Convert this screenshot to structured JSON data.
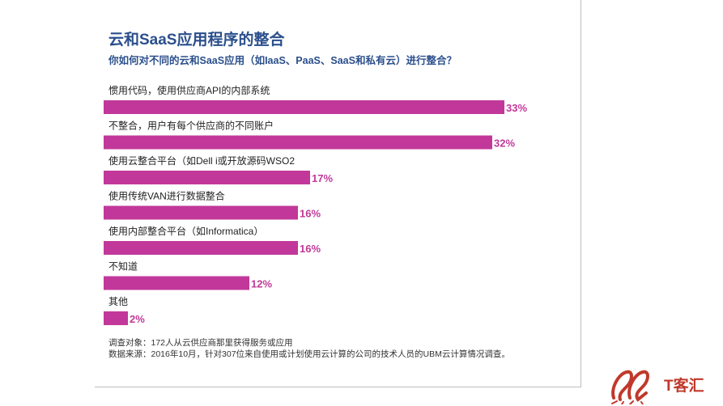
{
  "title": "云和SaaS应用程序的整合",
  "subtitle": "你如何对不同的云和SaaS应用（如IaaS、PaaS、SaaS和私有云）进行整合？",
  "chart_data": {
    "type": "bar",
    "orientation": "horizontal",
    "categories": [
      "惯用代码，使用供应商API的内部系统",
      "不整合，用户有每个供应商的不同账户",
      "使用云整合平台（如Dell i或开放源码WSO2",
      "使用传统VAN进行数据整合",
      "使用内部整合平台（如Informatica）",
      "不知道",
      "其他"
    ],
    "values": [
      33,
      32,
      17,
      16,
      16,
      12,
      2
    ],
    "value_labels": [
      "33%",
      "32%",
      "17%",
      "16%",
      "16%",
      "12%",
      "2%"
    ],
    "unit": "%",
    "bar_color": "#c2389a",
    "label_color": "#c2389a",
    "grid": false,
    "legend": "none"
  },
  "notes": {
    "line1": "调查对象：172人从云供应商那里获得服务或应用",
    "line2": "数据来源：2016年10月，针对307位来自使用或计划使用云计算的公司的技术人员的UBM云计算情况调查。"
  },
  "brand": {
    "logo_text": "T客汇",
    "logo_color": "#c0392b"
  }
}
